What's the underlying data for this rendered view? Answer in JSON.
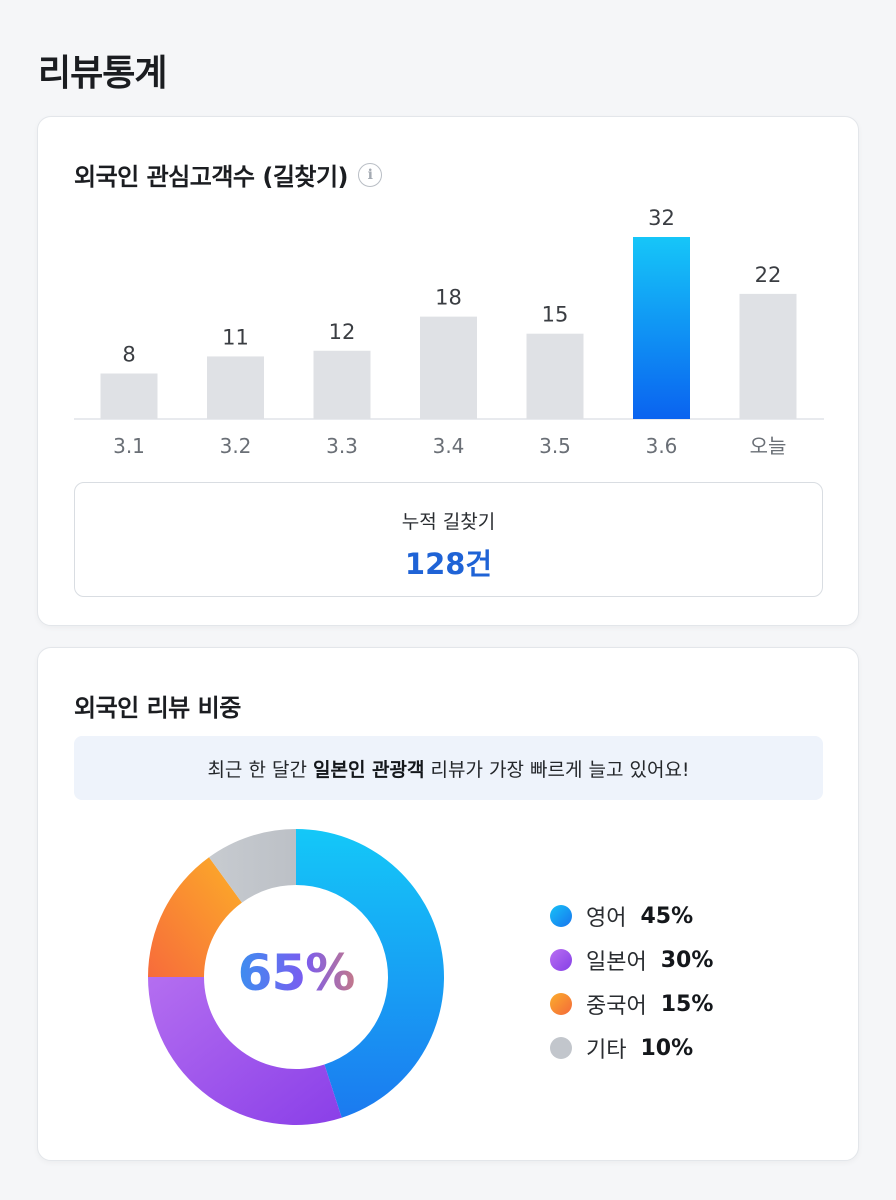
{
  "page": {
    "title": "리뷰통계"
  },
  "card1": {
    "title": "외국인 관심고객수 (길찾기)",
    "info_icon": "info-icon",
    "total_label": "누적 길찾기",
    "total_value": "128건"
  },
  "chart_data": [
    {
      "type": "bar",
      "title": "외국인 관심고객수 (길찾기)",
      "categories": [
        "3.1",
        "3.2",
        "3.3",
        "3.4",
        "3.5",
        "3.6",
        "오늘"
      ],
      "values": [
        8,
        11,
        12,
        18,
        15,
        32,
        22
      ],
      "highlight_index": 5,
      "colors": {
        "bar": "#dfe1e5",
        "highlight_top": "#16c6f8",
        "highlight_bottom": "#0a63f0",
        "label": "#3a3d42"
      }
    },
    {
      "type": "pie",
      "style": "donut",
      "center_label": "65%",
      "slices": [
        {
          "name": "영어",
          "value": 45,
          "color": "#1a8ff2"
        },
        {
          "name": "일본어",
          "value": 30,
          "color": "#9a55ef"
        },
        {
          "name": "중국어",
          "value": 15,
          "color": "#f98a3a"
        },
        {
          "name": "기타",
          "value": 10,
          "color": "#c2c6cc"
        }
      ]
    }
  ],
  "card2": {
    "title": "외국인 리뷰 비중",
    "insight": {
      "prefix": "최근 한 달간 ",
      "highlight": "일본인 관광객",
      "suffix": " 리뷰가 가장 빠르게 늘고 있어요!"
    },
    "center_label": "65%",
    "legend": [
      {
        "name": "영어",
        "pct": "45%",
        "color": "#1a8ff2"
      },
      {
        "name": "일본어",
        "pct": "30%",
        "color": "#9a55ef"
      },
      {
        "name": "중국어",
        "pct": "15%",
        "color": "#f98a3a"
      },
      {
        "name": "기타",
        "pct": "10%",
        "color": "#c2c6cc"
      }
    ]
  }
}
